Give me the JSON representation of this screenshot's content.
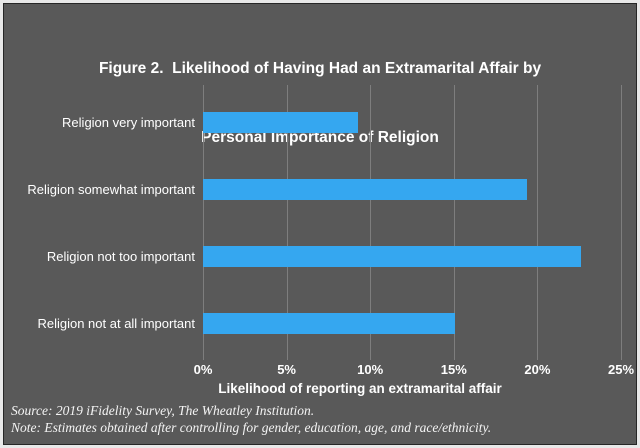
{
  "figure": {
    "title_line1": "Figure 2.  Likelihood of Having Had an Extramarital Affair by",
    "title_line2": "Personal Importance of Religion"
  },
  "chart_data": {
    "type": "bar",
    "orientation": "horizontal",
    "title": "Figure 2.  Likelihood of Having Had an Extramarital Affair by Personal Importance of Religion",
    "categories": [
      "Religion very important",
      "Religion somewhat important",
      "Religion not too important",
      "Religion not at all important"
    ],
    "values": [
      9.3,
      19.4,
      22.6,
      15.1
    ],
    "xlabel": "Likelihood of reporting an extramarital affair",
    "ylabel": "",
    "xlim": [
      0,
      25
    ],
    "x_ticks": [
      "0%",
      "5%",
      "10%",
      "15%",
      "20%",
      "25%"
    ],
    "x_tick_values": [
      0,
      5,
      10,
      15,
      20,
      25
    ],
    "grid": true,
    "legend": false
  },
  "notes": {
    "source": "Source: 2019 iFidelity Survey, The Wheatley Institution.",
    "note": "Note: Estimates obtained after controlling for gender, education, age, and race/ethnicity."
  },
  "colors": {
    "background": "#595959",
    "bar": "#35A7F0",
    "gridline": "#7E7E7E",
    "text": "#FFFFFF",
    "frame_outer": "#E8E8E8",
    "frame_inner": "#262626"
  }
}
